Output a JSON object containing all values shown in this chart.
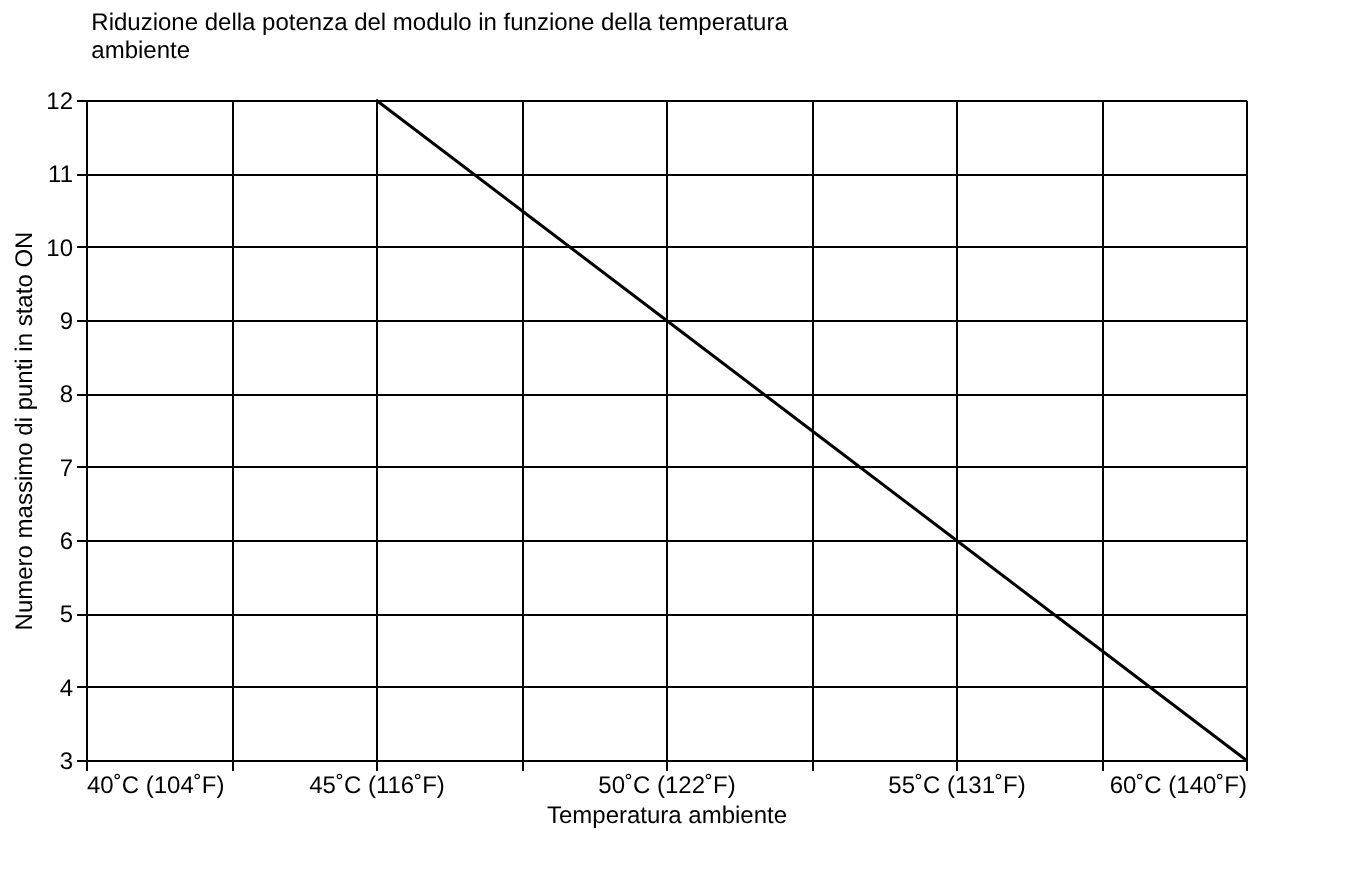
{
  "chart_data": {
    "type": "line",
    "title": "Riduzione della potenza del modulo in funzione della temperatura ambiente",
    "xlabel": "Temperatura ambiente",
    "ylabel": "Numero massimo di punti in stato ON",
    "categories": [
      "40˚C (104˚F)",
      null,
      "45˚C (116˚F)",
      null,
      "50˚C (122˚F)",
      null,
      "55˚C (131˚F)",
      null,
      "60˚C (140˚F)"
    ],
    "series": [
      {
        "color": "#000000",
        "values": [
          null,
          null,
          12,
          10.5,
          9,
          7.5,
          6,
          4.5,
          3
        ]
      }
    ],
    "ylim": [
      3,
      12
    ],
    "yticks": [
      3,
      4,
      5,
      6,
      7,
      8,
      9,
      10,
      11,
      12
    ],
    "grid": true,
    "line_style": "solid"
  }
}
